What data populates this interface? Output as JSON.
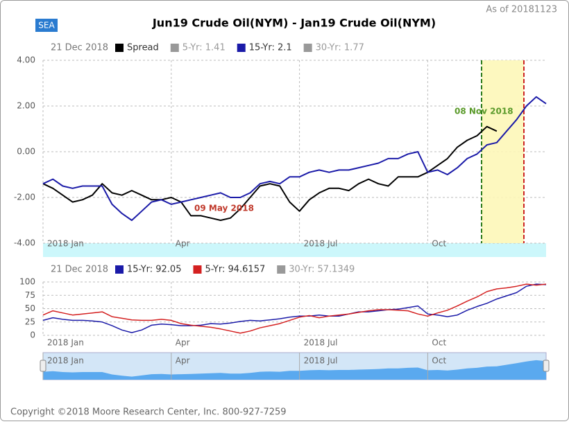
{
  "as_of": "As of 20181123",
  "badge": "SEA",
  "footer": "Copyright ©2018 Moore Research Center, Inc. 800-927-7259",
  "chart_data": [
    {
      "type": "line",
      "title": "Jun19 Crude Oil(NYM) - Jan19 Crude Oil(NYM)",
      "legend_date": "21 Dec 2018",
      "categories": [
        "2018 Jan",
        null,
        null,
        null,
        null,
        null,
        null,
        null,
        null,
        null,
        null,
        null,
        null,
        "Apr",
        null,
        null,
        null,
        null,
        null,
        null,
        null,
        null,
        null,
        null,
        null,
        null,
        "2018 Jul",
        null,
        null,
        null,
        null,
        null,
        null,
        null,
        null,
        null,
        null,
        null,
        null,
        "Oct",
        null,
        null,
        null,
        null,
        null,
        null,
        null,
        null,
        null,
        null,
        null,
        null
      ],
      "series": [
        {
          "name": "Spread",
          "color": "#000000",
          "visible": true,
          "values": [
            -1.4,
            -1.6,
            -1.9,
            -2.2,
            -2.1,
            -1.9,
            -1.4,
            -1.8,
            -1.9,
            -1.7,
            -1.9,
            -2.1,
            -2.1,
            -2.0,
            -2.2,
            -2.8,
            -2.8,
            -2.9,
            -3.0,
            -2.9,
            -2.5,
            -2.0,
            -1.5,
            -1.4,
            -1.5,
            -2.2,
            -2.6,
            -2.1,
            -1.8,
            -1.6,
            -1.6,
            -1.7,
            -1.4,
            -1.2,
            -1.4,
            -1.5,
            -1.1,
            -1.1,
            -1.1,
            -0.9,
            -0.6,
            -0.3,
            0.2,
            0.5,
            0.7,
            1.1,
            0.9,
            null,
            null,
            null,
            null,
            null
          ]
        },
        {
          "name": "5-Yr: 1.41",
          "color": "#999999",
          "visible": false
        },
        {
          "name": "15-Yr: 2.1",
          "color": "#1a1aa8",
          "visible": true,
          "values": [
            -1.4,
            -1.2,
            -1.5,
            -1.6,
            -1.5,
            -1.5,
            -1.5,
            -2.3,
            -2.7,
            -3.0,
            -2.6,
            -2.2,
            -2.1,
            -2.3,
            -2.2,
            -2.1,
            -2.0,
            -1.9,
            -1.8,
            -2.0,
            -2.0,
            -1.8,
            -1.4,
            -1.3,
            -1.4,
            -1.1,
            -1.1,
            -0.9,
            -0.8,
            -0.9,
            -0.8,
            -0.8,
            -0.7,
            -0.6,
            -0.5,
            -0.3,
            -0.3,
            -0.1,
            0.0,
            -0.9,
            -0.8,
            -1.0,
            -0.7,
            -0.3,
            -0.1,
            0.3,
            0.4,
            0.9,
            1.4,
            2.0,
            2.4,
            2.1
          ]
        },
        {
          "name": "30-Yr: 1.77",
          "color": "#999999",
          "visible": false
        }
      ],
      "annotations": [
        {
          "text": "09 May 2018",
          "color": "#c0392b"
        },
        {
          "text": "08 Nov 2018",
          "color": "#5a9a2a"
        }
      ],
      "ylim": [
        -4,
        4
      ],
      "yticks": [
        {
          "value": 4,
          "label": "4.00"
        },
        {
          "value": 2,
          "label": "2.00"
        },
        {
          "value": 0,
          "label": "0.00"
        },
        {
          "value": -2,
          "label": "-2.00"
        },
        {
          "value": -4,
          "label": "-4.00"
        }
      ],
      "grid": true
    },
    {
      "type": "line",
      "legend_date": "21 Dec 2018",
      "categories": [
        "2018 Jan",
        null,
        null,
        null,
        null,
        null,
        null,
        null,
        null,
        null,
        null,
        null,
        null,
        "Apr",
        null,
        null,
        null,
        null,
        null,
        null,
        null,
        null,
        null,
        null,
        null,
        null,
        "2018 Jul",
        null,
        null,
        null,
        null,
        null,
        null,
        null,
        null,
        null,
        null,
        null,
        null,
        "Oct",
        null,
        null,
        null,
        null,
        null,
        null,
        null,
        null,
        null,
        null,
        null,
        null
      ],
      "series": [
        {
          "name": "15-Yr: 92.05",
          "color": "#1a1aa8",
          "visible": true,
          "values": [
            28,
            33,
            30,
            28,
            28,
            27,
            25,
            18,
            10,
            5,
            10,
            19,
            21,
            20,
            18,
            18,
            19,
            22,
            21,
            23,
            26,
            28,
            27,
            29,
            31,
            34,
            36,
            36,
            38,
            36,
            36,
            40,
            44,
            44,
            46,
            48,
            49,
            52,
            55,
            40,
            38,
            35,
            38,
            47,
            54,
            60,
            68,
            74,
            80,
            92,
            96,
            95
          ]
        },
        {
          "name": "5-Yr: 94.6157",
          "color": "#d42020",
          "visible": true,
          "values": [
            38,
            46,
            42,
            38,
            40,
            42,
            44,
            35,
            32,
            29,
            28,
            28,
            30,
            28,
            22,
            19,
            17,
            15,
            12,
            8,
            4,
            8,
            14,
            18,
            22,
            28,
            34,
            37,
            33,
            36,
            38,
            40,
            43,
            46,
            48,
            48,
            47,
            46,
            40,
            36,
            42,
            47,
            55,
            64,
            72,
            82,
            87,
            89,
            92,
            96,
            94,
            96
          ]
        },
        {
          "name": "30-Yr: 57.1349",
          "color": "#999999",
          "visible": false
        }
      ],
      "ylim": [
        0,
        100
      ],
      "yticks": [
        0,
        25,
        50,
        75,
        100
      ],
      "grid": true
    }
  ]
}
